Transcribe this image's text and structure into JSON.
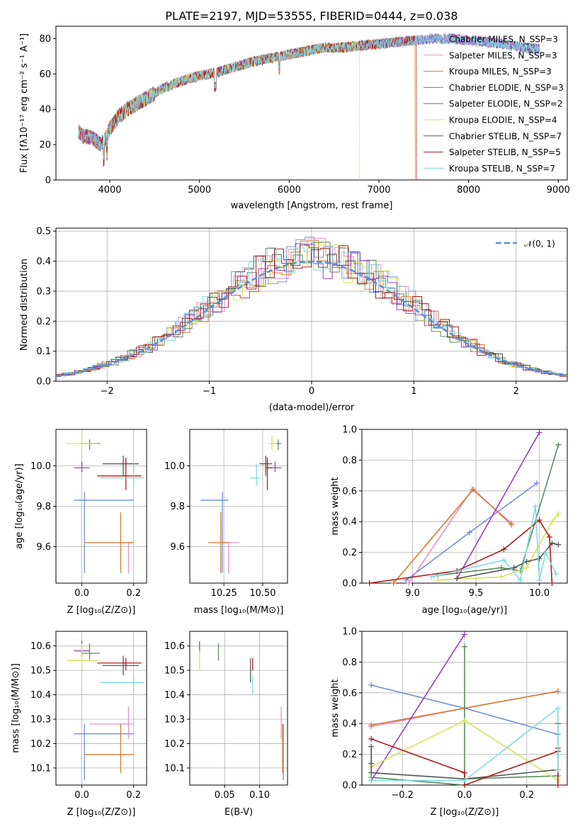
{
  "colors": [
    "#6f8fdb",
    "#e58fc3",
    "#d9782d",
    "#5d8a5f",
    "#9a3fba",
    "#d6e35a",
    "#555555",
    "#b01c1c",
    "#7fdadf"
  ],
  "spectrum": {
    "title": "PLATE=2197, MJD=53555, FIBERID=0444, z=0.038",
    "xlabel": "wavelength [Angstrom, rest frame]",
    "ylabel": "Flux [fλ10⁻¹⁷ erg cm⁻² s⁻¹ A⁻¹]",
    "xlim": [
      3400,
      9100
    ],
    "ylim": [
      0,
      87
    ],
    "xticks": [
      "4000",
      "5000",
      "6000",
      "7000",
      "8000",
      "9000"
    ],
    "yticks": [
      "0",
      "20",
      "40",
      "60",
      "80"
    ],
    "legend": [
      "Chabrier MILES, N_SSP=3",
      "Salpeter MILES, N_SSP=3",
      "Kroupa MILES, N_SSP=3",
      "Chabrier ELODIE, N_SSP=3",
      "Salpeter ELODIE, N_SSP=2",
      "Kroupa ELODIE, N_SSP=4",
      "Chabrier STELIB, N_SSP=7",
      "Salpeter STELIB, N_SSP=5",
      "Kroupa STELIB, N_SSP=7"
    ]
  },
  "residuals": {
    "xlabel": "(data-model)/error",
    "ylabel": "Normed distribution",
    "xlim": [
      -2.5,
      2.5
    ],
    "ylim": [
      0,
      0.51
    ],
    "xticks": [
      "−2",
      "−1",
      "0",
      "1",
      "2"
    ],
    "yticks": [
      "0.0",
      "0.1",
      "0.2",
      "0.3",
      "0.4",
      "0.5"
    ],
    "legend": "𝒩(0, 1)"
  },
  "chart_data": {
    "type": "line",
    "spectrum_anchors": {
      "wavelength": [
        3650,
        3700,
        3800,
        3900,
        3950,
        4000,
        4100,
        4200,
        4300,
        4400,
        4500,
        4600,
        4800,
        5000,
        5200,
        5400,
        5600,
        5800,
        6000,
        6200,
        6400,
        6600,
        6800,
        7000,
        7200,
        7400,
        7600,
        7800,
        8000,
        8200,
        8400,
        8600,
        8800
      ],
      "flux": [
        28,
        25,
        24,
        20,
        23,
        29,
        36,
        40,
        43,
        46,
        49,
        52,
        56,
        59,
        61,
        64,
        67,
        69,
        71,
        73,
        75,
        75,
        76,
        77,
        78,
        79,
        80,
        80,
        79,
        78,
        77,
        75,
        74
      ]
    },
    "residual_gaussian": {
      "mean": 0,
      "sigma": 1
    },
    "panels": [
      {
        "name": "age-vs-Z",
        "xlabel": "Z [log₁₀(Z/Z⊙)]",
        "ylabel": "age  [log₁₀(age/yr)]",
        "xlim": [
          -0.1,
          0.25
        ],
        "ylim": [
          9.42,
          10.18
        ],
        "xticks": [
          [
            0.0,
            "0.0"
          ],
          [
            0.2,
            "0.2"
          ]
        ],
        "yticks": [
          [
            9.6,
            "9.6"
          ],
          [
            9.8,
            "9.8"
          ],
          [
            10.0,
            "10.0"
          ]
        ],
        "points": [
          {
            "x": 0.01,
            "y": 9.83,
            "xe": [
              -0.03,
              0.2
            ],
            "ye": [
              9.47,
              9.87
            ]
          },
          {
            "x": 0.18,
            "y": 9.62,
            "xe": [
              0.03,
              0.2
            ],
            "ye": [
              9.47,
              9.62
            ]
          },
          {
            "x": 0.15,
            "y": 9.62,
            "xe": [
              0.01,
              0.2
            ],
            "ye": [
              9.47,
              9.77
            ]
          },
          {
            "x": 0.03,
            "y": 10.11,
            "xe": [
              0.0,
              0.07
            ],
            "ye": [
              10.08,
              10.13
            ]
          },
          {
            "x": 0.0,
            "y": 9.99,
            "xe": [
              -0.03,
              0.03
            ],
            "ye": [
              9.97,
              10.02
            ]
          },
          {
            "x": 0.0,
            "y": 10.11,
            "xe": [
              -0.06,
              0.06
            ],
            "ye": [
              10.08,
              10.15
            ]
          },
          {
            "x": 0.16,
            "y": 10.01,
            "xe": [
              0.08,
              0.22
            ],
            "ye": [
              9.95,
              10.05
            ]
          },
          {
            "x": 0.17,
            "y": 9.95,
            "xe": [
              0.06,
              0.23
            ],
            "ye": [
              9.88,
              10.04
            ]
          },
          {
            "x": 0.2,
            "y": 9.94,
            "xe": [
              0.07,
              0.24
            ],
            "ye": [
              9.9,
              10.01
            ]
          }
        ]
      },
      {
        "name": "age-vs-mass",
        "xlabel": "mass [log₁₀(M/M⊙)]",
        "ylabel": "",
        "xlim": [
          10.03,
          10.66
        ],
        "ylim": [
          9.42,
          10.18
        ],
        "xticks": [
          [
            10.25,
            "10.25"
          ],
          [
            10.5,
            "10.50"
          ]
        ],
        "yticks": [
          [
            9.6,
            "9.6"
          ],
          [
            9.8,
            "9.8"
          ],
          [
            10.0,
            "10.0"
          ]
        ],
        "points": [
          {
            "x": 10.24,
            "y": 9.83,
            "xe": [
              10.1,
              10.28
            ],
            "ye": [
              9.47,
              9.87
            ]
          },
          {
            "x": 10.28,
            "y": 9.62,
            "xe": [
              10.22,
              10.35
            ],
            "ye": [
              9.47,
              9.62
            ]
          },
          {
            "x": 10.23,
            "y": 9.62,
            "xe": [
              10.15,
              10.28
            ],
            "ye": [
              9.47,
              9.77
            ]
          },
          {
            "x": 10.6,
            "y": 10.11,
            "xe": [
              10.56,
              10.62
            ],
            "ye": [
              10.08,
              10.13
            ]
          },
          {
            "x": 10.58,
            "y": 9.99,
            "xe": [
              10.55,
              10.62
            ],
            "ye": [
              9.97,
              10.02
            ]
          },
          {
            "x": 10.56,
            "y": 10.11,
            "xe": [
              10.54,
              10.59
            ],
            "ye": [
              10.08,
              10.15
            ]
          },
          {
            "x": 10.52,
            "y": 10.01,
            "xe": [
              10.48,
              10.56
            ],
            "ye": [
              9.95,
              10.05
            ]
          },
          {
            "x": 10.53,
            "y": 9.99,
            "xe": [
              10.52,
              10.56
            ],
            "ye": [
              9.88,
              10.04
            ]
          },
          {
            "x": 10.46,
            "y": 9.94,
            "xe": [
              10.42,
              10.48
            ],
            "ye": [
              9.9,
              10.01
            ]
          }
        ]
      },
      {
        "name": "mass-vs-Z",
        "xlabel": "Z [log₁₀(Z/Z⊙)]",
        "ylabel": "mass [log₁₀(M/M⊙)]",
        "xlim": [
          -0.1,
          0.25
        ],
        "ylim": [
          10.03,
          10.66
        ],
        "xticks": [
          [
            0.0,
            "0.0"
          ],
          [
            0.2,
            "0.2"
          ]
        ],
        "yticks": [
          [
            10.1,
            "10.1"
          ],
          [
            10.2,
            "10.2"
          ],
          [
            10.3,
            "10.3"
          ],
          [
            10.4,
            "10.4"
          ],
          [
            10.5,
            "10.5"
          ],
          [
            10.6,
            "10.6"
          ]
        ],
        "points": [
          {
            "x": 0.01,
            "y": 10.24,
            "xe": [
              -0.03,
              0.2
            ],
            "ye": [
              10.05,
              10.28
            ]
          },
          {
            "x": 0.18,
            "y": 10.28,
            "xe": [
              0.03,
              0.2
            ],
            "ye": [
              10.22,
              10.35
            ]
          },
          {
            "x": 0.15,
            "y": 10.155,
            "xe": [
              0.01,
              0.2
            ],
            "ye": [
              10.08,
              10.28
            ]
          },
          {
            "x": 0.03,
            "y": 10.57,
            "xe": [
              0.0,
              0.07
            ],
            "ye": [
              10.54,
              10.61
            ]
          },
          {
            "x": 0.0,
            "y": 10.58,
            "xe": [
              -0.03,
              0.03
            ],
            "ye": [
              10.55,
              10.62
            ]
          },
          {
            "x": 0.0,
            "y": 10.54,
            "xe": [
              -0.06,
              0.06
            ],
            "ye": [
              10.5,
              10.61
            ]
          },
          {
            "x": 0.16,
            "y": 10.52,
            "xe": [
              0.08,
              0.22
            ],
            "ye": [
              10.48,
              10.56
            ]
          },
          {
            "x": 0.17,
            "y": 10.53,
            "xe": [
              0.06,
              0.23
            ],
            "ye": [
              10.5,
              10.55
            ]
          },
          {
            "x": 0.2,
            "y": 10.45,
            "xe": [
              0.07,
              0.24
            ],
            "ye": [
              10.42,
              10.48
            ]
          }
        ]
      },
      {
        "name": "mass-vs-ebv",
        "xlabel": "E(B-V)",
        "ylabel": "",
        "xlim": [
          0.0,
          0.14
        ],
        "ylim": [
          10.03,
          10.66
        ],
        "xticks": [
          [
            0.05,
            "0.05"
          ],
          [
            0.1,
            "0.10"
          ]
        ],
        "yticks": [
          [
            10.1,
            "10.1"
          ],
          [
            10.2,
            "10.2"
          ],
          [
            10.3,
            "10.3"
          ],
          [
            10.4,
            "10.4"
          ],
          [
            10.5,
            "10.5"
          ],
          [
            10.6,
            "10.6"
          ]
        ],
        "points": [
          {
            "x": 0.134,
            "y": 10.24,
            "xe": [
              0.134,
              0.134
            ],
            "ye": [
              10.05,
              10.28
            ]
          },
          {
            "x": 0.131,
            "y": 10.28,
            "xe": [
              0.131,
              0.131
            ],
            "ye": [
              10.22,
              10.35
            ]
          },
          {
            "x": 0.133,
            "y": 10.155,
            "xe": [
              0.133,
              0.133
            ],
            "ye": [
              10.08,
              10.28
            ]
          },
          {
            "x": 0.041,
            "y": 10.57,
            "xe": [
              0.041,
              0.041
            ],
            "ye": [
              10.54,
              10.61
            ]
          },
          {
            "x": 0.014,
            "y": 10.6,
            "xe": [
              0.014,
              0.014
            ],
            "ye": [
              10.57,
              10.62
            ]
          },
          {
            "x": 0.014,
            "y": 10.54,
            "xe": [
              0.014,
              0.014
            ],
            "ye": [
              10.5,
              10.58
            ]
          },
          {
            "x": 0.087,
            "y": 10.51,
            "xe": [
              0.087,
              0.087
            ],
            "ye": [
              10.45,
              10.55
            ]
          },
          {
            "x": 0.09,
            "y": 10.53,
            "xe": [
              0.09,
              0.09
            ],
            "ye": [
              10.5,
              10.55
            ]
          },
          {
            "x": 0.09,
            "y": 10.44,
            "xe": [
              0.09,
              0.09
            ],
            "ye": [
              10.4,
              10.48
            ]
          }
        ]
      },
      {
        "name": "weight-vs-age",
        "xlabel": "age  [log₁₀(age/yr)]",
        "ylabel": "mass weight",
        "xlim": [
          8.6,
          10.22
        ],
        "ylim": [
          0,
          1
        ],
        "xticks": [
          [
            9.0,
            "9.0"
          ],
          [
            9.5,
            "9.5"
          ],
          [
            10.0,
            "10.0"
          ]
        ],
        "yticks": [
          [
            0,
            "0.0"
          ],
          [
            0.2,
            "0.2"
          ],
          [
            0.4,
            "0.4"
          ],
          [
            0.6,
            "0.6"
          ],
          [
            0.8,
            "0.8"
          ],
          [
            1.0,
            "1.0"
          ]
        ],
        "lines": [
          {
            "x": [
              8.95,
              9.45,
              9.98
            ],
            "y": [
              0.02,
              0.33,
              0.65
            ]
          },
          {
            "x": [
              8.97,
              9.47,
              9.78
            ],
            "y": [
              0.0,
              0.61,
              0.39
            ]
          },
          {
            "x": [
              8.85,
              9.48,
              9.78
            ],
            "y": [
              0.0,
              0.61,
              0.38
            ]
          },
          {
            "x": [
              9.2,
              9.7,
              9.85,
              10.15
            ],
            "y": [
              0.05,
              0.1,
              0.08,
              0.9
            ]
          },
          {
            "x": [
              9.35,
              10.0
            ],
            "y": [
              0.03,
              0.98
            ]
          },
          {
            "x": [
              9.2,
              9.7,
              9.9,
              10.1,
              10.15
            ],
            "y": [
              0.02,
              0.04,
              0.1,
              0.4,
              0.45
            ]
          },
          {
            "x": [
              9.35,
              9.8,
              9.9,
              10.0,
              10.1,
              10.15
            ],
            "y": [
              0.03,
              0.1,
              0.14,
              0.16,
              0.26,
              0.25
            ]
          },
          {
            "x": [
              8.66,
              9.35,
              9.72,
              10.0,
              10.08,
              10.1
            ],
            "y": [
              0.0,
              0.08,
              0.22,
              0.41,
              0.3,
              0.0
            ]
          },
          {
            "x": [
              9.15,
              9.72,
              9.85,
              9.97,
              10.0,
              10.05,
              10.13
            ],
            "y": [
              0.04,
              0.15,
              0.02,
              0.5,
              0.02,
              0.2,
              0.06
            ]
          }
        ]
      },
      {
        "name": "weight-vs-Z",
        "xlabel": "Z [log₁₀(Z/Z⊙)]",
        "ylabel": "mass weight",
        "xlim": [
          -0.33,
          0.33
        ],
        "ylim": [
          0,
          1
        ],
        "xticks": [
          [
            -0.2,
            "−0.2"
          ],
          [
            0.0,
            "0.0"
          ],
          [
            0.2,
            "0.2"
          ]
        ],
        "yticks": [
          [
            0,
            "0.0"
          ],
          [
            0.2,
            "0.2"
          ],
          [
            0.4,
            "0.4"
          ],
          [
            0.6,
            "0.6"
          ],
          [
            0.8,
            "0.8"
          ],
          [
            1.0,
            "1.0"
          ]
        ],
        "lines": [
          {
            "x": [
              -0.3,
              0.0,
              0.3
            ],
            "y": [
              0.65,
              0.5,
              0.33
            ]
          },
          {
            "x": [
              -0.3,
              0.0,
              0.3
            ],
            "y": [
              0.38,
              0.5,
              0.61
            ]
          },
          {
            "x": [
              -0.3,
              0.3
            ],
            "y": [
              0.39,
              0.61
            ]
          },
          {
            "x": [
              -0.3,
              0.0,
              0.0,
              0.0,
              0.3
            ],
            "y": [
              0.05,
              0.0,
              0.9,
              0.04,
              0.06
            ]
          },
          {
            "x": [
              -0.3,
              0.0
            ],
            "y": [
              0.03,
              0.98
            ]
          },
          {
            "x": [
              -0.3,
              0.0,
              0.3
            ],
            "y": [
              0.12,
              0.42,
              0.03
            ]
          },
          {
            "x": [
              -0.3,
              -0.3,
              -0.3,
              0.0,
              0.3,
              0.3,
              0.3
            ],
            "y": [
              0.25,
              0.14,
              0.08,
              0.04,
              0.1,
              0.24,
              0.4
            ]
          },
          {
            "x": [
              -0.3,
              0.0,
              0.0,
              0.3,
              0.3
            ],
            "y": [
              0.3,
              0.08,
              0.0,
              0.22,
              0.0
            ]
          },
          {
            "x": [
              -0.3,
              0.0,
              0.3,
              0.3,
              0.3
            ],
            "y": [
              0.03,
              0.03,
              0.5,
              0.2,
              0.1
            ]
          }
        ]
      }
    ]
  }
}
